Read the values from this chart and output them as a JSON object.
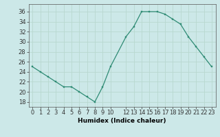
{
  "x": [
    0,
    1,
    2,
    3,
    4,
    5,
    6,
    7,
    8,
    9,
    10,
    12,
    13,
    14,
    15,
    16,
    17,
    18,
    19,
    20,
    21,
    22,
    23
  ],
  "y": [
    25,
    24,
    23,
    22,
    21,
    21,
    20,
    19,
    18,
    21,
    25,
    31,
    33,
    36,
    36,
    36,
    35.5,
    34.5,
    33.5,
    31,
    29,
    27,
    25
  ],
  "line_color": "#2e8b74",
  "marker_color": "#2e8b74",
  "bg_color": "#cce8e8",
  "grid_color": "#b8d8d0",
  "xlabel": "Humidex (Indice chaleur)",
  "xlim": [
    -0.5,
    23.5
  ],
  "ylim": [
    17,
    37.5
  ],
  "yticks": [
    18,
    20,
    22,
    24,
    26,
    28,
    30,
    32,
    34,
    36
  ],
  "xticks": [
    0,
    1,
    2,
    3,
    4,
    5,
    6,
    7,
    8,
    9,
    10,
    12,
    13,
    14,
    15,
    16,
    17,
    18,
    19,
    20,
    21,
    22,
    23
  ],
  "xtick_labels": [
    "0",
    "1",
    "2",
    "3",
    "4",
    "5",
    "6",
    "7",
    "8",
    "9",
    "10",
    "12",
    "13",
    "14",
    "15",
    "16",
    "17",
    "18",
    "19",
    "20",
    "21",
    "22",
    "23"
  ],
  "xlabel_fontsize": 6.5,
  "tick_fontsize": 6.0
}
